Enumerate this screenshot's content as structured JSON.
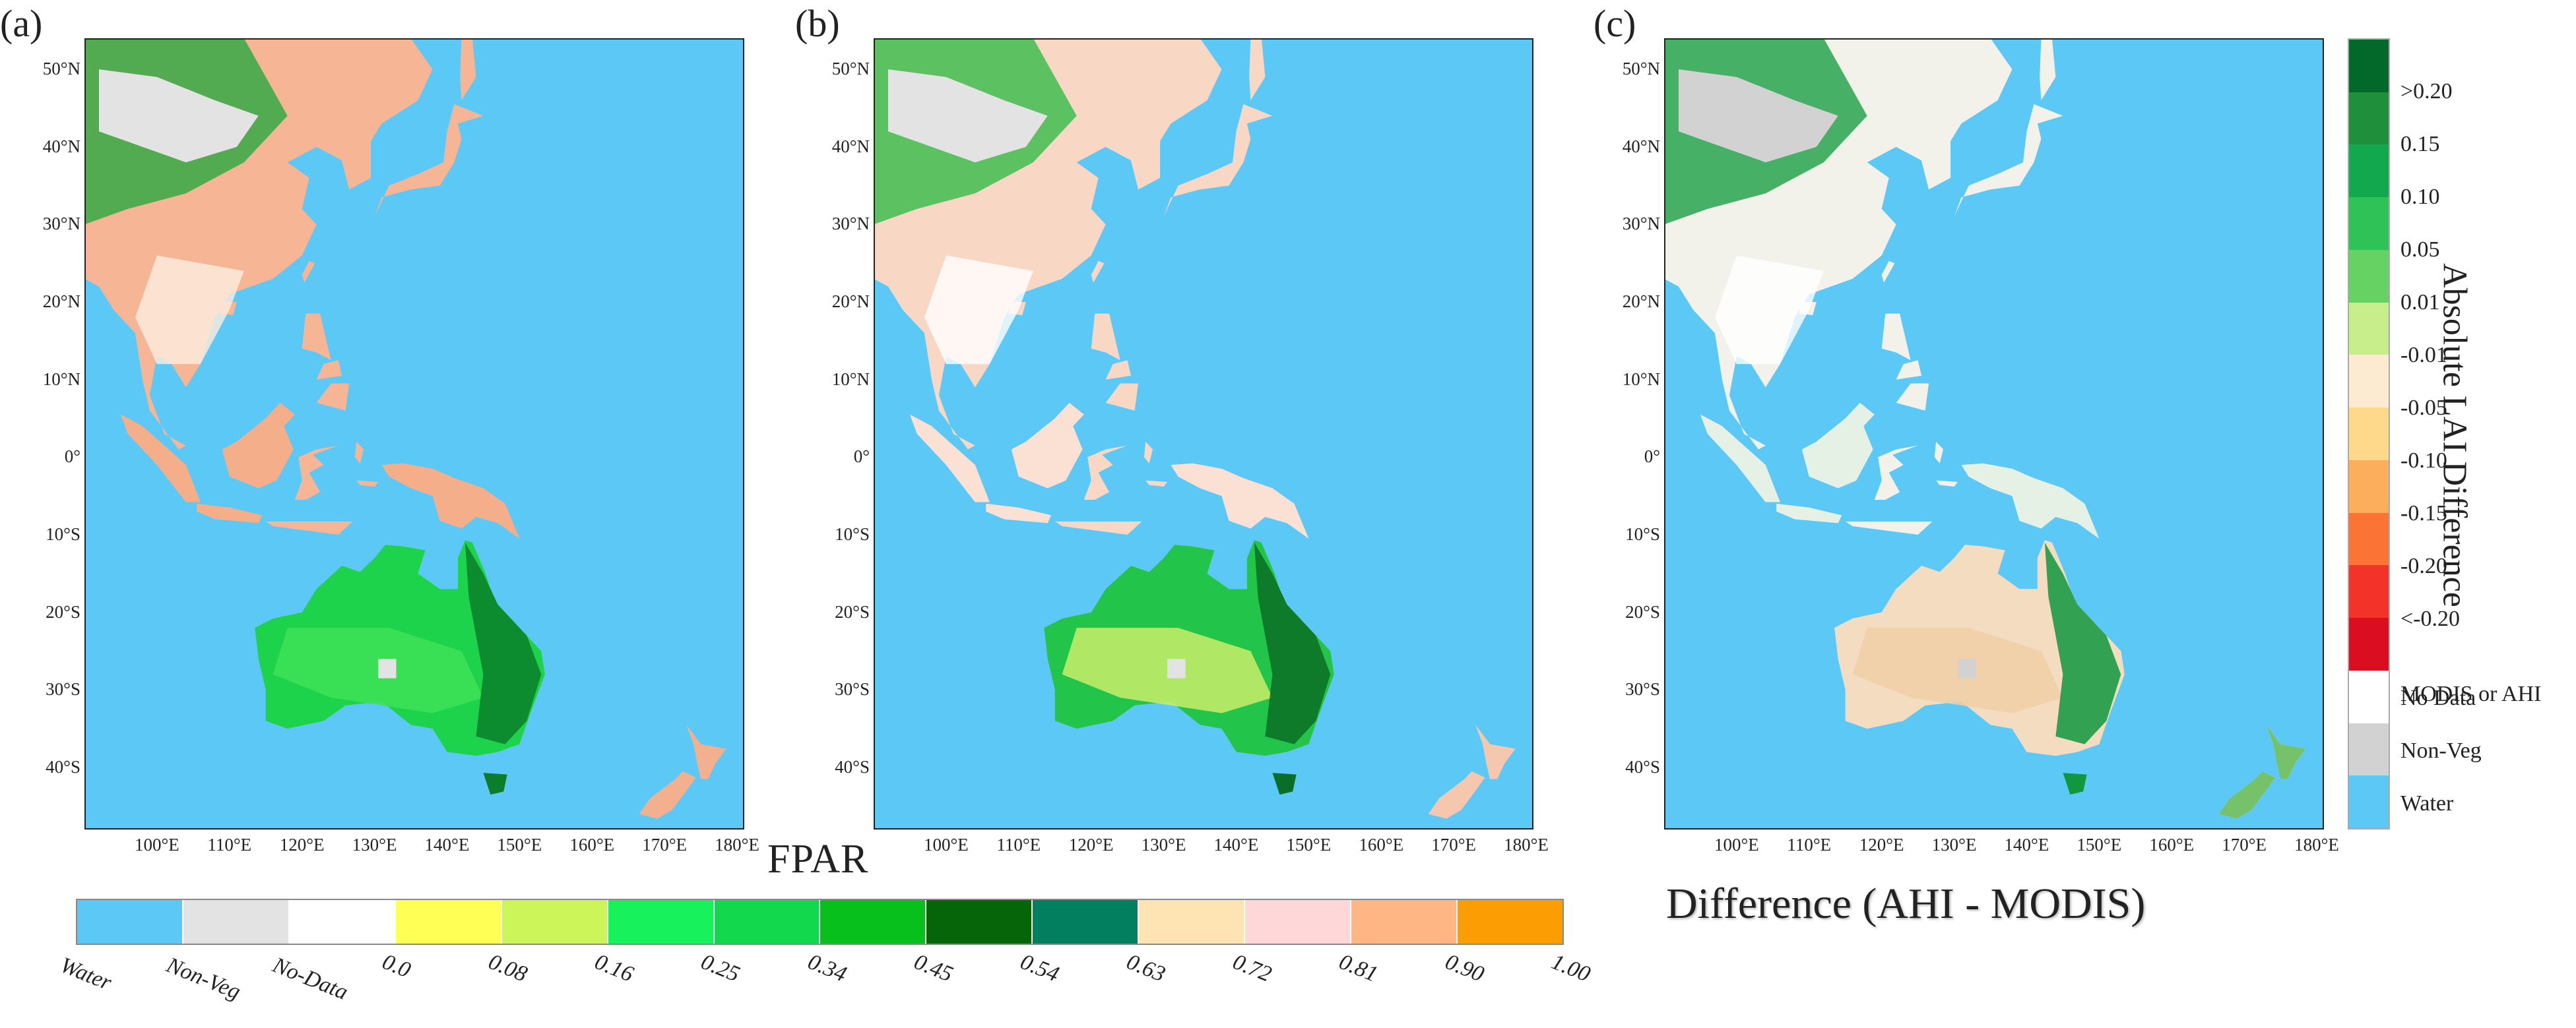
{
  "panels": [
    {
      "label": "(a)",
      "variant": "fpar_ahi"
    },
    {
      "label": "(b)",
      "variant": "fpar_modis"
    },
    {
      "label": "(c)",
      "variant": "difference"
    }
  ],
  "lat_labels": [
    "50°N",
    "40°N",
    "30°N",
    "20°N",
    "10°N",
    "0°",
    "10°S",
    "20°S",
    "30°S",
    "40°S"
  ],
  "lat_values": [
    50,
    40,
    30,
    20,
    10,
    0,
    -10,
    -20,
    -30,
    -40
  ],
  "lon_labels": [
    "100°E",
    "110°E",
    "120°E",
    "130°E",
    "140°E",
    "150°E",
    "160°E",
    "170°E",
    "180°E"
  ],
  "lon_values": [
    100,
    110,
    120,
    130,
    140,
    150,
    160,
    170,
    180
  ],
  "extent": {
    "lon": [
      90,
      181
    ],
    "lat": [
      -48,
      54
    ]
  },
  "fpar_legend": {
    "title": "FPAR",
    "items": [
      {
        "label": "Water",
        "color": "#5bc8f5"
      },
      {
        "label": "Non-Veg",
        "color": "#e3e3e3"
      },
      {
        "label": "No-Data",
        "color": "#ffffff"
      },
      {
        "label": "0.0",
        "color": "#ffff55"
      },
      {
        "label": "0.08",
        "color": "#ccf55a"
      },
      {
        "label": "0.16",
        "color": "#17f25c"
      },
      {
        "label": "0.25",
        "color": "#11d84d"
      },
      {
        "label": "0.34",
        "color": "#07c01c"
      },
      {
        "label": "0.45",
        "color": "#066409"
      },
      {
        "label": "0.54",
        "color": "#017f5f"
      },
      {
        "label": "0.63",
        "color": "#fee4b2"
      },
      {
        "label": "0.72",
        "color": "#fed8d8"
      },
      {
        "label": "0.81",
        "color": "#feb784"
      },
      {
        "label": "0.90",
        "color": "#fc9d04"
      },
      {
        "label": "1.00",
        "color": ""
      }
    ]
  },
  "diff_legend": {
    "title": "Difference (AHI - MODIS)",
    "axis_label": "Absolute LAI Difference",
    "colors": [
      "#03692a",
      "#1f8f3c",
      "#11a84e",
      "#2ec257",
      "#66d264",
      "#c8ee8c",
      "#fdebd1",
      "#fed98b",
      "#fcae5c",
      "#fb7435",
      "#f3332a",
      "#da0d21",
      "#ffffff",
      "#d2d2d2",
      "#5bc8f5"
    ],
    "labels": [
      ">0.20",
      "0.15",
      "0.10",
      "0.05",
      "0.01",
      "-0.01",
      "-0.05",
      "-0.10",
      "-0.15",
      "-0.20",
      "<-0.20",
      "MODIS or AHI",
      "No Data",
      "Non-Veg",
      "Water"
    ]
  },
  "colors": {
    "water": "#5bc8f5",
    "nonveg": "#e3e3e3",
    "nodata_diff": "#d2d2d2"
  }
}
